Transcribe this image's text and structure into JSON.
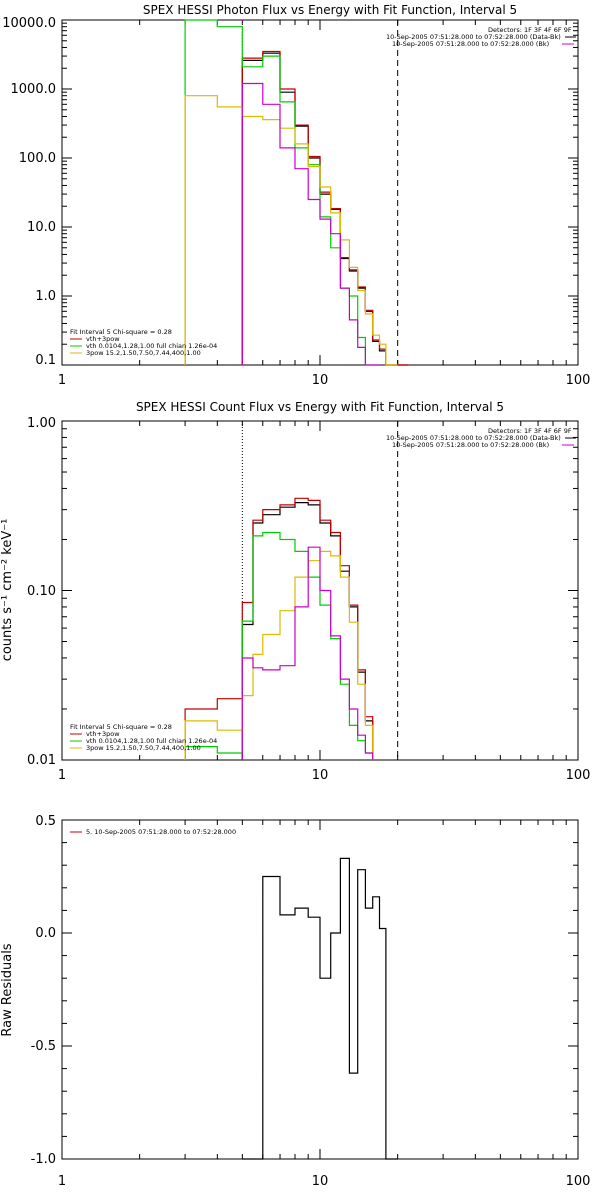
{
  "chart_data": [
    {
      "type": "line",
      "title": "SPEX HESSI Photon Flux vs Energy with Fit Function, Interval 5",
      "xscale": "log",
      "yscale": "log",
      "xlim": [
        1,
        100
      ],
      "ylim": [
        0.1,
        10000
      ],
      "x_ticks": [
        "1",
        "10",
        "100"
      ],
      "y_ticks": [
        "0.1",
        "1.0",
        "10.0",
        "100.0",
        "1000.0",
        "10000.0"
      ],
      "header_labels": [
        "Detectors: 1F 3F 4F 6F 9F",
        "10-Sep-2005 07:51:28.000 to 07:52:28.000 (Data-Bk)",
        "10-Sep-2005 07:51:28.000 to 07:52:28.000 (Bk)"
      ],
      "legend_title": "Fit Interval 5    Chi-square = 0.28",
      "legend": [
        {
          "label": "vth+3pow",
          "color": "#c00000"
        },
        {
          "label": "vth 0.0104,1.28,1.00   full chian 1.26e-04",
          "color": "#00cc00"
        },
        {
          "label": "3pow 15.2,1.50,7.50,7.44,400,1.00",
          "color": "#ddbb00"
        }
      ],
      "vlines": [
        {
          "x": 5.0,
          "style": "dotted",
          "color": "#cc00cc"
        },
        {
          "x": 20.0,
          "style": "dashed",
          "color": "#000000"
        }
      ],
      "edges": [
        3,
        4,
        5,
        6,
        7,
        8,
        9,
        10,
        11,
        12,
        13,
        14,
        15,
        16,
        17,
        18,
        20,
        22
      ],
      "series": [
        {
          "key": "data",
          "color": "#000000",
          "values": [
            null,
            null,
            2600,
            3300,
            900,
            290,
            100,
            30,
            18,
            3.5,
            2.3,
            1.3,
            0.6,
            0.22,
            0.16,
            0.09,
            0.07
          ]
        },
        {
          "key": "total",
          "color": "#c00000",
          "values": [
            null,
            null,
            2800,
            3500,
            1000,
            300,
            105,
            32,
            18.5,
            3.6,
            2.4,
            1.35,
            0.62,
            0.23,
            0.17,
            0.1,
            0.075
          ]
        },
        {
          "key": "thermal",
          "color": "#00cc00",
          "values": [
            20000,
            8000,
            2100,
            3000,
            650,
            140,
            80,
            14,
            5,
            1.3,
            1.0,
            0.25,
            0.1,
            0.05,
            null,
            null,
            null
          ]
        },
        {
          "key": "power",
          "color": "#ddbb00",
          "values": [
            800,
            550,
            400,
            360,
            270,
            160,
            75,
            38,
            16,
            6.5,
            2.6,
            1.2,
            0.55,
            0.27,
            0.2,
            0.1,
            null
          ]
        },
        {
          "key": "background",
          "color": "#cc00cc",
          "values": [
            null,
            null,
            1200,
            600,
            140,
            70,
            25,
            13,
            8,
            1.3,
            0.45,
            0.18,
            0.08,
            0.05,
            null,
            null,
            null
          ]
        }
      ]
    },
    {
      "type": "line",
      "title": "SPEX HESSI Count Flux vs Energy with Fit Function, Interval 5",
      "ylabel": "counts s⁻¹ cm⁻² keV⁻¹",
      "xscale": "log",
      "yscale": "log",
      "xlim": [
        1,
        100
      ],
      "ylim": [
        0.01,
        1.0
      ],
      "x_ticks": [
        "1",
        "10",
        "100"
      ],
      "y_ticks": [
        "0.01",
        "0.10",
        "1.00"
      ],
      "header_labels": [
        "Detectors: 1F 3F 4F 6F 9F",
        "10-Sep-2005 07:51:28.000 to 07:52:28.000 (Data-Bk)",
        "10-Sep-2005 07:51:28.000 to 07:52:28.000 (Bk)"
      ],
      "legend_title": "Fit Interval 5    Chi-square = 0.28",
      "legend": [
        {
          "label": "vth+3pow",
          "color": "#c00000"
        },
        {
          "label": "vth 0.0104,1.28,1.00   full chian 1.26e-04",
          "color": "#00cc00"
        },
        {
          "label": "3pow 15.2,1.50,7.50,7.44,400,1.00",
          "color": "#ddbb00"
        }
      ],
      "vlines": [
        {
          "x": 5.0,
          "style": "dotted",
          "color": "#000000"
        },
        {
          "x": 20.0,
          "style": "dashed",
          "color": "#000000"
        }
      ],
      "edges": [
        3,
        4,
        5,
        5.5,
        6,
        7,
        8,
        9,
        10,
        11,
        12,
        13,
        14,
        15,
        16,
        17,
        18,
        20
      ],
      "series": [
        {
          "key": "data",
          "color": "#000000",
          "values": [
            null,
            null,
            0.063,
            0.25,
            0.28,
            0.31,
            0.33,
            0.32,
            0.25,
            0.21,
            0.13,
            0.08,
            0.033,
            0.017
          ]
        },
        {
          "key": "total",
          "color": "#c00000",
          "values": [
            0.02,
            0.023,
            0.085,
            0.26,
            0.3,
            0.32,
            0.35,
            0.34,
            0.26,
            0.22,
            0.14,
            0.082,
            0.034,
            0.018
          ]
        },
        {
          "key": "thermal",
          "color": "#00cc00",
          "values": [
            0.012,
            0.011,
            0.066,
            0.21,
            0.22,
            0.2,
            0.17,
            0.12,
            0.082,
            0.052,
            0.028,
            0.016,
            0.013,
            0.011
          ]
        },
        {
          "key": "power",
          "color": "#ddbb00",
          "values": [
            0.017,
            0.015,
            0.024,
            0.042,
            0.055,
            0.076,
            0.12,
            0.15,
            0.17,
            0.16,
            0.12,
            0.065,
            0.028,
            0.016
          ]
        },
        {
          "key": "background",
          "color": "#cc00cc",
          "values": [
            null,
            null,
            0.04,
            0.035,
            0.034,
            0.036,
            0.08,
            0.18,
            0.1,
            0.054,
            0.03,
            0.02,
            0.014,
            0.011
          ]
        }
      ]
    },
    {
      "type": "line",
      "ylabel": "Raw Residuals",
      "xscale": "log",
      "yscale": "linear",
      "xlim": [
        1,
        100
      ],
      "ylim": [
        -1.0,
        0.5
      ],
      "x_ticks": [
        "1",
        "10",
        "100"
      ],
      "y_ticks": [
        "-1.0",
        "-0.5",
        "0.0",
        "0.5"
      ],
      "legend": [
        {
          "label": "5. 10-Sep-2005 07:51:28.000 to 07:52:28.000",
          "color": "#c00000"
        }
      ],
      "edges": [
        5,
        6,
        7,
        8,
        9,
        10,
        11,
        12,
        13,
        14,
        15,
        16,
        17,
        18,
        20
      ],
      "series": [
        {
          "key": "residuals",
          "color": "#000000",
          "values": [
            -1.0,
            0.25,
            0.08,
            0.11,
            0.07,
            -0.2,
            0.0,
            0.33,
            -0.62,
            0.28,
            0.11,
            0.16,
            0.02,
            -1.0
          ]
        }
      ]
    }
  ]
}
